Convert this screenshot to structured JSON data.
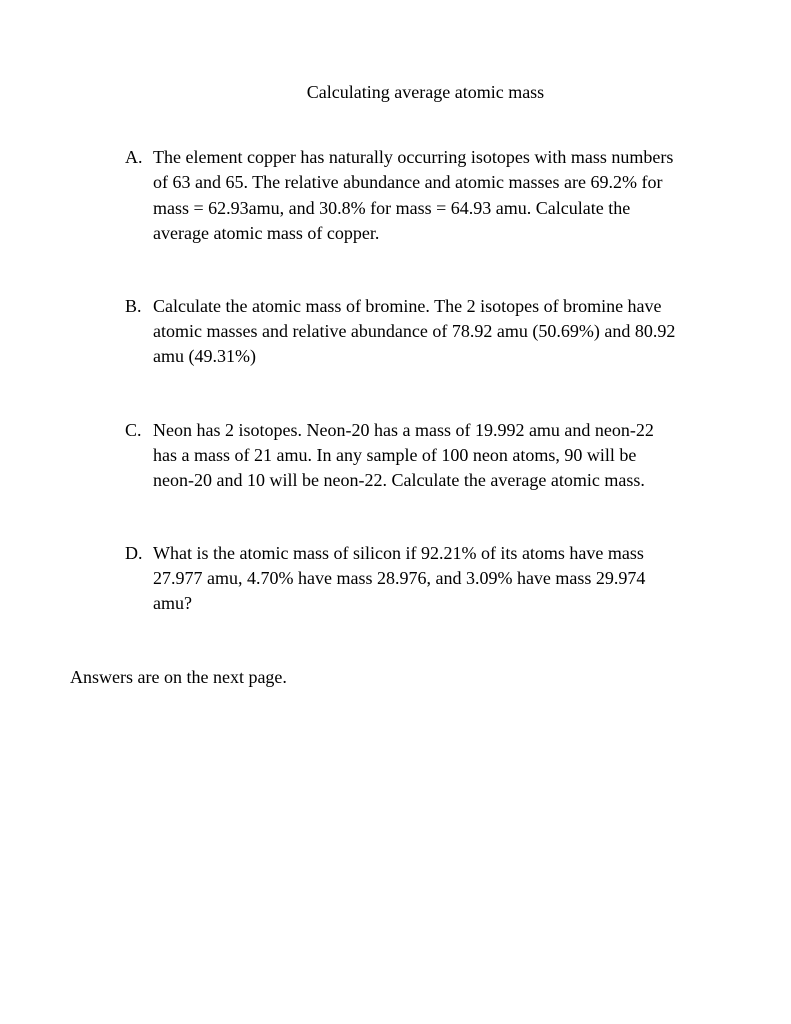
{
  "title": "Calculating average atomic mass",
  "problems": [
    {
      "letter": "A.",
      "text": "The element copper has naturally occurring isotopes with mass numbers of 63 and 65. The relative abundance and atomic masses are 69.2% for mass = 62.93amu, and 30.8% for mass = 64.93 amu.  Calculate the average atomic mass of copper."
    },
    {
      "letter": "B.",
      "text": "Calculate the atomic mass of bromine. The 2 isotopes of bromine have atomic masses and relative abundance of 78.92 amu (50.69%) and 80.92 amu (49.31%)"
    },
    {
      "letter": "C.",
      "text": "Neon has 2 isotopes. Neon-20 has a mass of 19.992 amu and neon-22 has a mass of 21 amu.  In any sample of 100 neon atoms, 90 will be neon-20 and 10 will be neon-22.  Calculate the average atomic mass."
    },
    {
      "letter": "D.",
      "text": "What is the atomic mass of silicon if 92.21% of its atoms have mass 27.977 amu, 4.70% have mass 28.976, and 3.09% have mass 29.974 amu?"
    }
  ],
  "footer": "Answers are on the next page."
}
